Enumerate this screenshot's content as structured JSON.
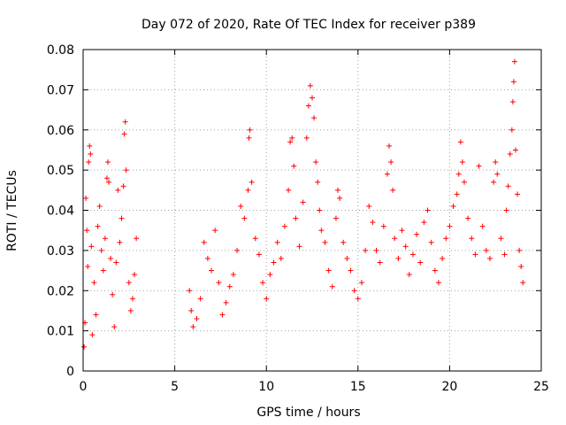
{
  "chart_data": {
    "type": "scatter",
    "title": "Day 072 of 2020, Rate Of TEC Index for receiver p389",
    "xlabel": "GPS time / hours",
    "ylabel": "ROTI / TECUs",
    "xlim": [
      0,
      25
    ],
    "ylim": [
      0,
      0.08
    ],
    "xticks": [
      0,
      5,
      10,
      15,
      20,
      25
    ],
    "yticks": [
      0,
      0.01,
      0.02,
      0.03,
      0.04,
      0.05,
      0.06,
      0.07,
      0.08
    ],
    "xtick_labels": [
      "0",
      "5",
      "10",
      "15",
      "20",
      "25"
    ],
    "ytick_labels": [
      "0",
      "0.01",
      "0.02",
      "0.03",
      "0.04",
      "0.05",
      "0.06",
      "0.07",
      "0.08"
    ],
    "grid": true,
    "marker": "+",
    "color": "#ff0000",
    "series": [
      {
        "name": "",
        "points": [
          [
            0.05,
            0.006
          ],
          [
            0.1,
            0.012
          ],
          [
            0.15,
            0.043
          ],
          [
            0.2,
            0.035
          ],
          [
            0.25,
            0.026
          ],
          [
            0.3,
            0.052
          ],
          [
            0.35,
            0.056
          ],
          [
            0.4,
            0.054
          ],
          [
            0.45,
            0.031
          ],
          [
            0.5,
            0.009
          ],
          [
            0.6,
            0.022
          ],
          [
            0.7,
            0.014
          ],
          [
            0.8,
            0.036
          ],
          [
            0.9,
            0.041
          ],
          [
            1.0,
            0.03
          ],
          [
            1.1,
            0.025
          ],
          [
            1.2,
            0.033
          ],
          [
            1.3,
            0.048
          ],
          [
            1.35,
            0.052
          ],
          [
            1.4,
            0.047
          ],
          [
            1.5,
            0.028
          ],
          [
            1.6,
            0.019
          ],
          [
            1.7,
            0.011
          ],
          [
            1.8,
            0.027
          ],
          [
            1.9,
            0.045
          ],
          [
            2.0,
            0.032
          ],
          [
            2.1,
            0.038
          ],
          [
            2.2,
            0.046
          ],
          [
            2.25,
            0.059
          ],
          [
            2.3,
            0.062
          ],
          [
            2.35,
            0.05
          ],
          [
            2.5,
            0.022
          ],
          [
            2.6,
            0.015
          ],
          [
            2.7,
            0.018
          ],
          [
            2.8,
            0.024
          ],
          [
            2.9,
            0.033
          ],
          [
            5.8,
            0.02
          ],
          [
            5.9,
            0.015
          ],
          [
            6.0,
            0.011
          ],
          [
            6.2,
            0.013
          ],
          [
            6.4,
            0.018
          ],
          [
            6.6,
            0.032
          ],
          [
            6.8,
            0.028
          ],
          [
            7.0,
            0.025
          ],
          [
            7.2,
            0.035
          ],
          [
            7.4,
            0.022
          ],
          [
            7.6,
            0.014
          ],
          [
            7.8,
            0.017
          ],
          [
            8.0,
            0.021
          ],
          [
            8.2,
            0.024
          ],
          [
            8.4,
            0.03
          ],
          [
            8.6,
            0.041
          ],
          [
            8.8,
            0.038
          ],
          [
            9.0,
            0.045
          ],
          [
            9.05,
            0.058
          ],
          [
            9.1,
            0.06
          ],
          [
            9.2,
            0.047
          ],
          [
            9.4,
            0.033
          ],
          [
            9.6,
            0.029
          ],
          [
            9.8,
            0.022
          ],
          [
            10.0,
            0.018
          ],
          [
            10.2,
            0.024
          ],
          [
            10.4,
            0.027
          ],
          [
            10.6,
            0.032
          ],
          [
            10.8,
            0.028
          ],
          [
            11.0,
            0.036
          ],
          [
            11.2,
            0.045
          ],
          [
            11.3,
            0.057
          ],
          [
            11.4,
            0.058
          ],
          [
            11.5,
            0.051
          ],
          [
            11.6,
            0.038
          ],
          [
            11.8,
            0.031
          ],
          [
            12.0,
            0.042
          ],
          [
            12.2,
            0.058
          ],
          [
            12.3,
            0.066
          ],
          [
            12.4,
            0.071
          ],
          [
            12.5,
            0.068
          ],
          [
            12.6,
            0.063
          ],
          [
            12.7,
            0.052
          ],
          [
            12.8,
            0.047
          ],
          [
            12.9,
            0.04
          ],
          [
            13.0,
            0.035
          ],
          [
            13.2,
            0.032
          ],
          [
            13.4,
            0.025
          ],
          [
            13.6,
            0.021
          ],
          [
            13.8,
            0.038
          ],
          [
            13.9,
            0.045
          ],
          [
            14.0,
            0.043
          ],
          [
            14.2,
            0.032
          ],
          [
            14.4,
            0.028
          ],
          [
            14.6,
            0.025
          ],
          [
            14.8,
            0.02
          ],
          [
            15.0,
            0.018
          ],
          [
            15.2,
            0.022
          ],
          [
            15.4,
            0.03
          ],
          [
            15.6,
            0.041
          ],
          [
            15.8,
            0.037
          ],
          [
            16.0,
            0.03
          ],
          [
            16.2,
            0.027
          ],
          [
            16.4,
            0.036
          ],
          [
            16.6,
            0.049
          ],
          [
            16.7,
            0.056
          ],
          [
            16.8,
            0.052
          ],
          [
            16.9,
            0.045
          ],
          [
            17.0,
            0.033
          ],
          [
            17.2,
            0.028
          ],
          [
            17.4,
            0.035
          ],
          [
            17.6,
            0.031
          ],
          [
            17.8,
            0.024
          ],
          [
            18.0,
            0.029
          ],
          [
            18.2,
            0.034
          ],
          [
            18.4,
            0.027
          ],
          [
            18.6,
            0.037
          ],
          [
            18.8,
            0.04
          ],
          [
            19.0,
            0.032
          ],
          [
            19.2,
            0.025
          ],
          [
            19.4,
            0.022
          ],
          [
            19.6,
            0.028
          ],
          [
            19.8,
            0.033
          ],
          [
            20.0,
            0.036
          ],
          [
            20.2,
            0.041
          ],
          [
            20.4,
            0.044
          ],
          [
            20.5,
            0.049
          ],
          [
            20.6,
            0.057
          ],
          [
            20.7,
            0.052
          ],
          [
            20.8,
            0.047
          ],
          [
            21.0,
            0.038
          ],
          [
            21.2,
            0.033
          ],
          [
            21.4,
            0.029
          ],
          [
            21.6,
            0.051
          ],
          [
            21.8,
            0.036
          ],
          [
            22.0,
            0.03
          ],
          [
            22.2,
            0.028
          ],
          [
            22.4,
            0.047
          ],
          [
            22.5,
            0.052
          ],
          [
            22.6,
            0.049
          ],
          [
            22.8,
            0.033
          ],
          [
            23.0,
            0.029
          ],
          [
            23.1,
            0.04
          ],
          [
            23.2,
            0.046
          ],
          [
            23.3,
            0.054
          ],
          [
            23.4,
            0.06
          ],
          [
            23.45,
            0.067
          ],
          [
            23.5,
            0.072
          ],
          [
            23.55,
            0.077
          ],
          [
            23.6,
            0.055
          ],
          [
            23.7,
            0.044
          ],
          [
            23.8,
            0.03
          ],
          [
            23.9,
            0.026
          ],
          [
            24.0,
            0.022
          ]
        ]
      }
    ]
  }
}
